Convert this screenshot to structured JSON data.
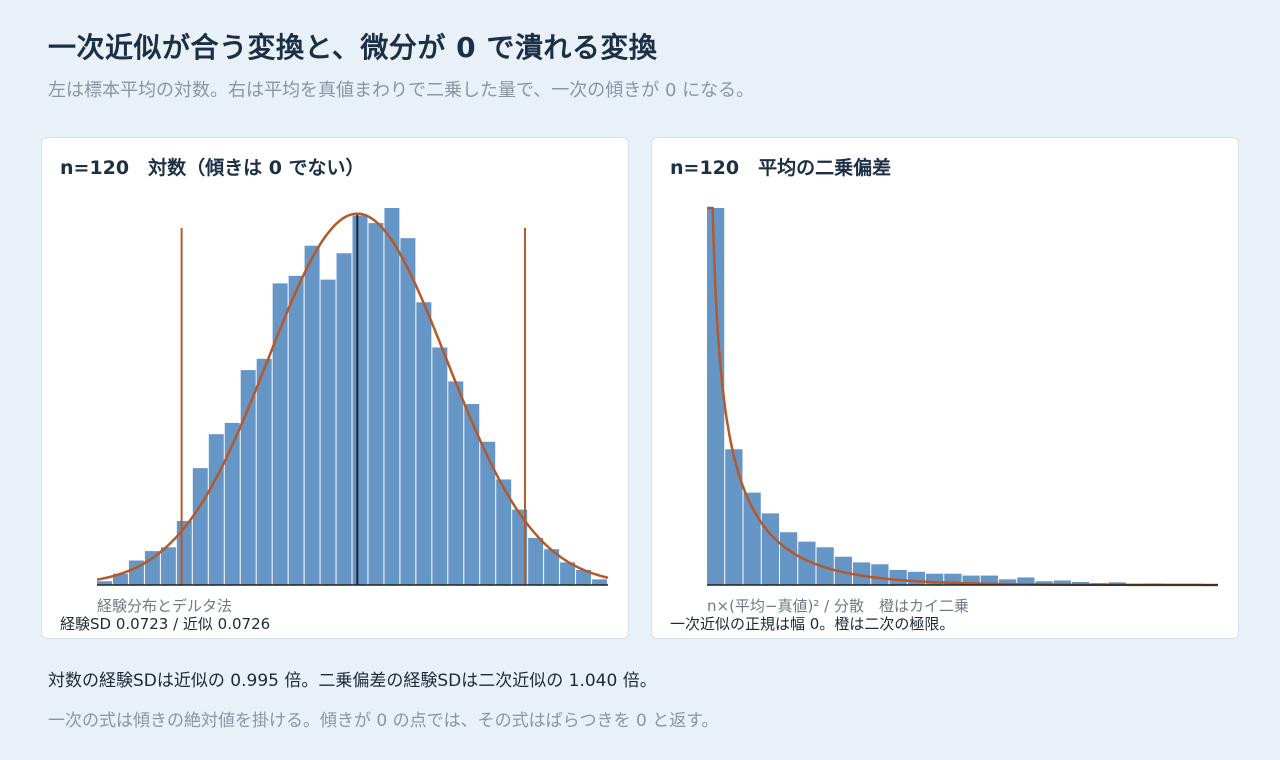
{
  "header": {
    "title": "一次近似が合う変換と、微分が 0 で潰れる変換",
    "subtitle": "左は標本平均の対数。右は平均を真値まわりで二乗した量で、一次の傾きが 0 になる。"
  },
  "footer": {
    "line1": "対数の経験SDは近似の 0.995 倍。二乗偏差の経験SDは二次近似の 1.040 倍。",
    "line2": "一次の式は傾きの絶対値を掛ける。傾きが 0 の点では、その式はばらつきを 0 と返す。"
  },
  "colors": {
    "bar": "#6596c6",
    "curve": "#b5592a",
    "reference_line": "#b5592a",
    "center_line": "#1b2733",
    "axis": "#222222"
  },
  "chart_data": [
    {
      "type": "bar",
      "title": "n=120　対数（傾きは 0 でない）",
      "note": "経験分布とデルタ法",
      "stat_text": "経験SD 0.0723 / 近似 0.0726",
      "overlay": "normal density curve (delta method)",
      "bins": 32,
      "values": [
        0.01,
        0.03,
        0.065,
        0.09,
        0.1,
        0.17,
        0.31,
        0.4,
        0.43,
        0.57,
        0.6,
        0.8,
        0.82,
        0.9,
        0.81,
        0.88,
        0.98,
        0.96,
        1.0,
        0.92,
        0.75,
        0.63,
        0.54,
        0.48,
        0.38,
        0.28,
        0.2,
        0.125,
        0.095,
        0.06,
        0.04,
        0.015
      ],
      "curve": {
        "mean_bin": 16.3,
        "sd_bins": 5.6,
        "peak": 0.985
      },
      "reference_lines": {
        "lower_bin": 5.3,
        "upper_bin": 26.8,
        "center_bin": 16.3
      }
    },
    {
      "type": "bar",
      "title": "n=120　平均の二乗偏差",
      "note": "n×(平均−真値)² / 分散　橙はカイ二乗",
      "stat_text": "一次近似の正規は幅 0。橙は二次の極限。",
      "overlay": "chi-square (df=1) density",
      "bins": 28,
      "values": [
        1.0,
        0.36,
        0.245,
        0.19,
        0.14,
        0.115,
        0.1,
        0.075,
        0.06,
        0.055,
        0.04,
        0.035,
        0.03,
        0.03,
        0.025,
        0.025,
        0.015,
        0.02,
        0.01,
        0.012,
        0.008,
        0.005,
        0.007,
        0.003,
        0.004,
        0.002,
        0.002,
        0.001
      ],
      "curve": {
        "distribution": "chi-square",
        "df": 1
      }
    }
  ]
}
